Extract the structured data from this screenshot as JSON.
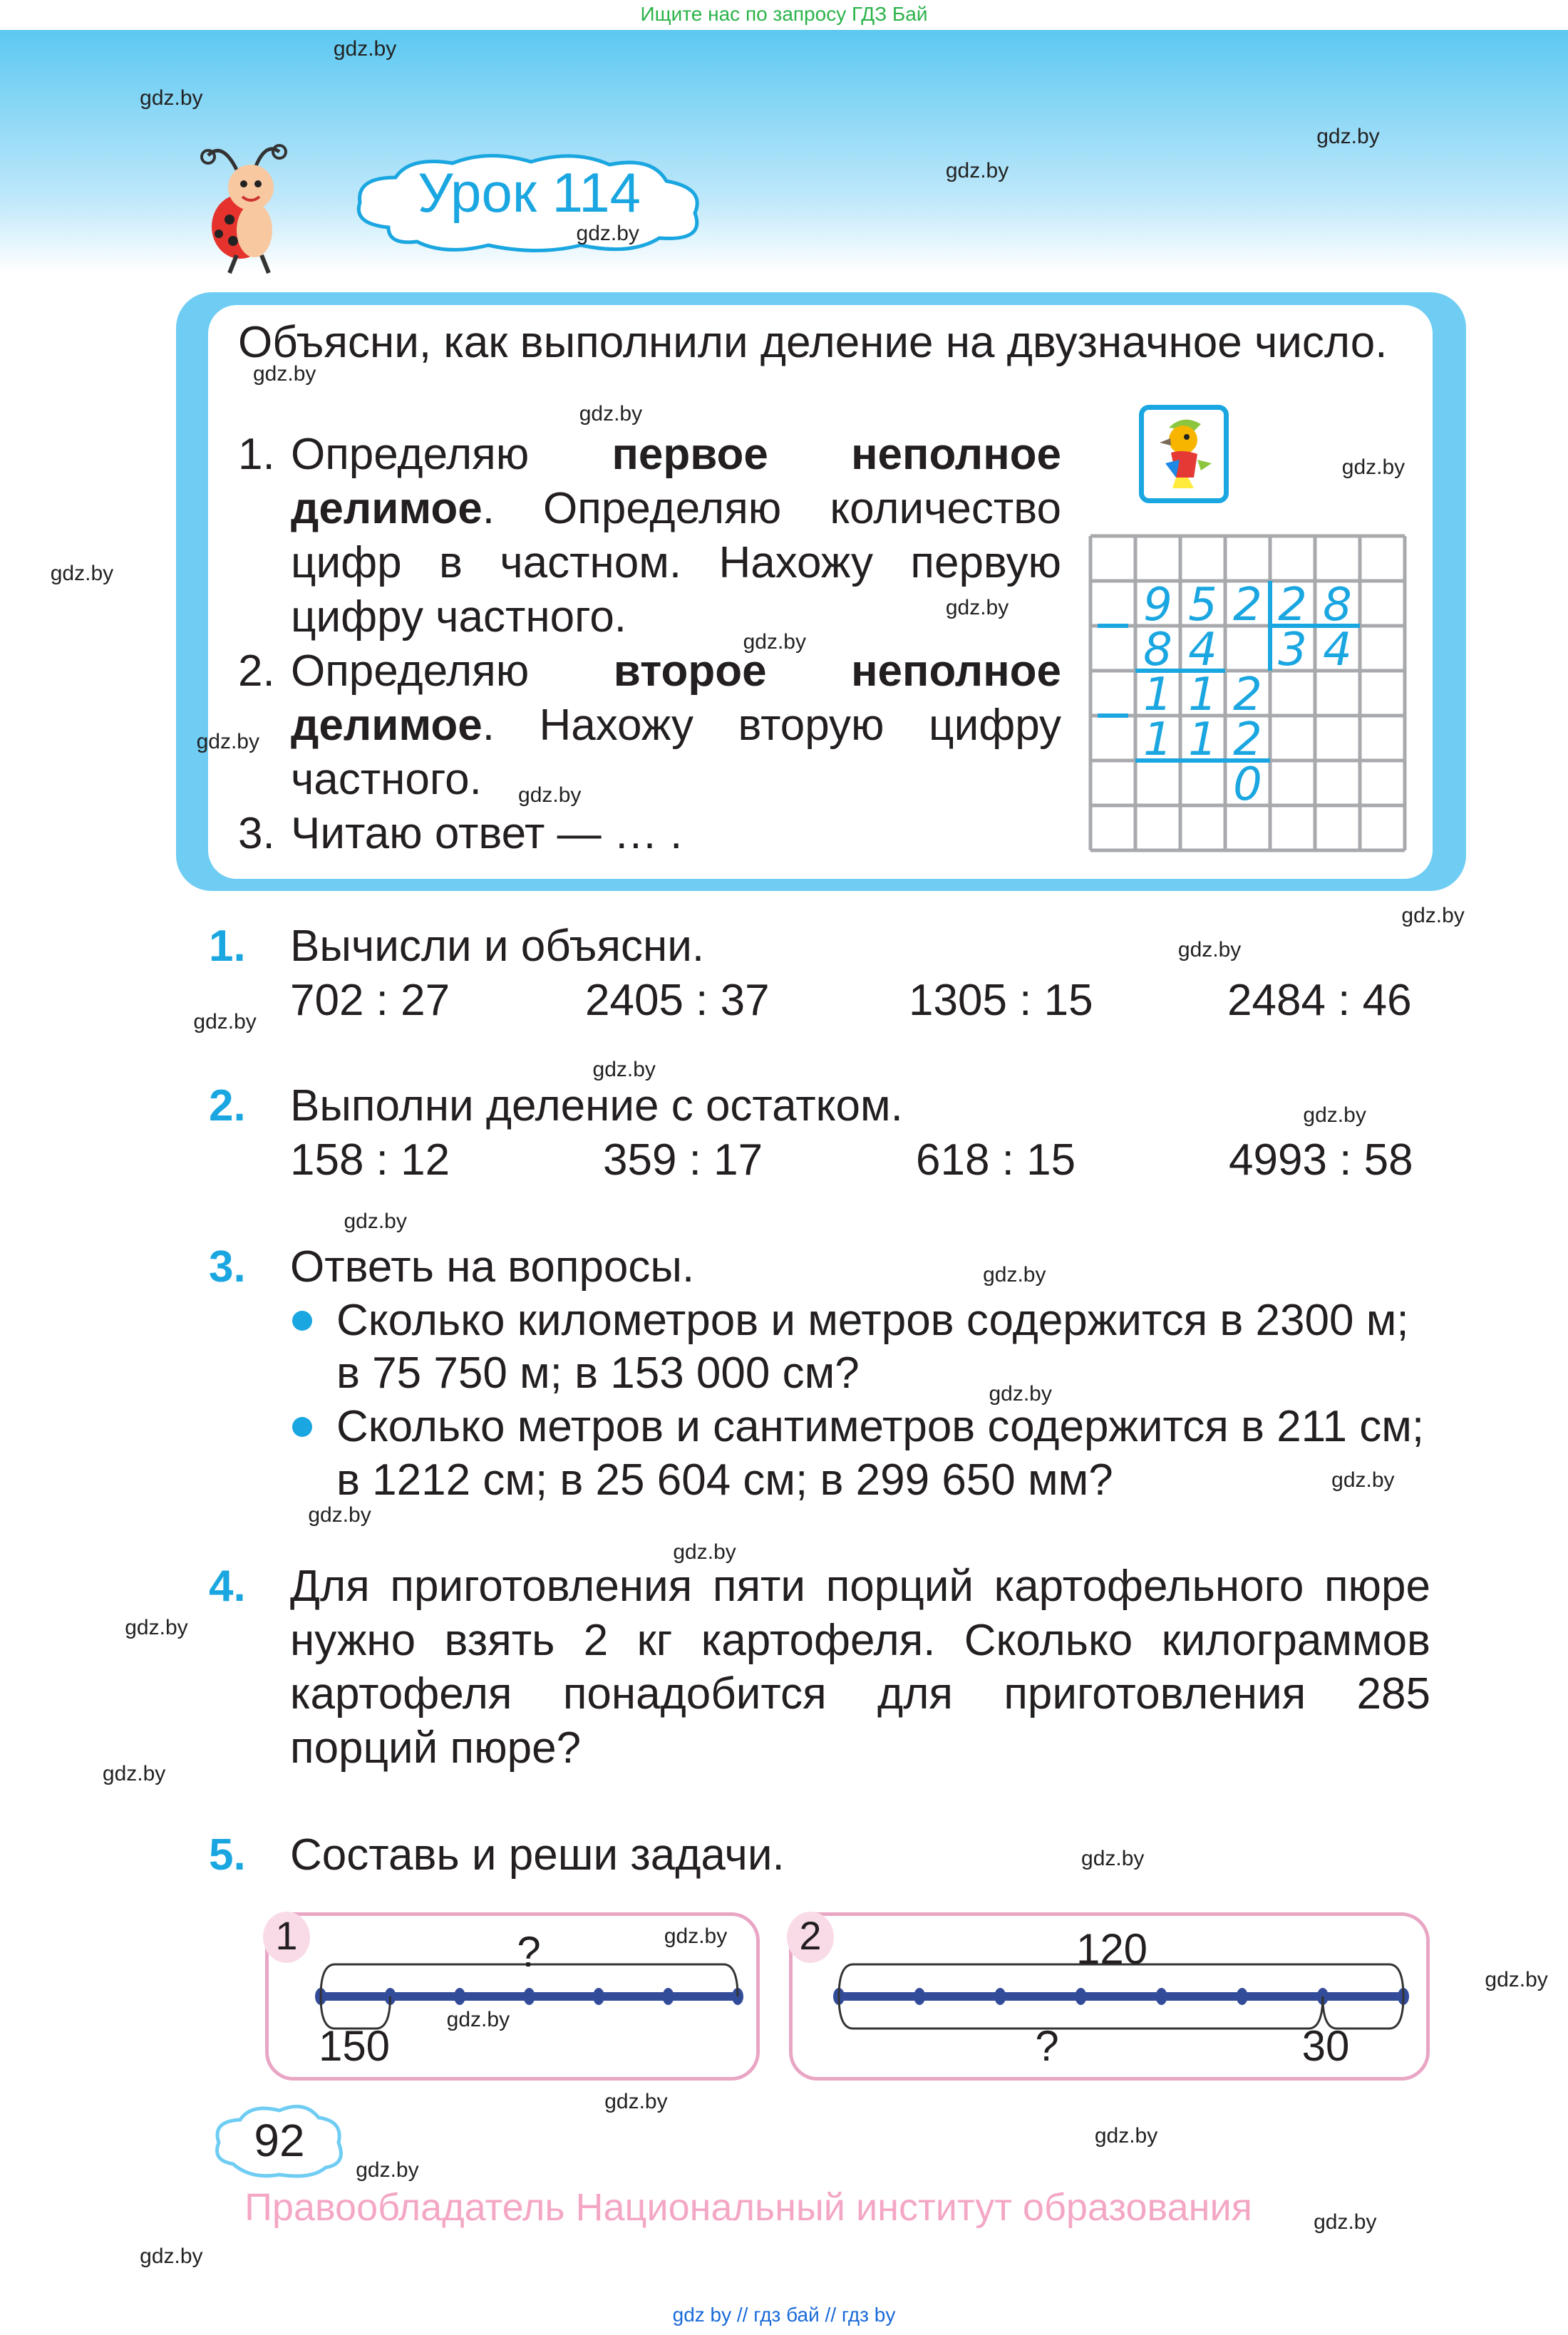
{
  "top_note": "Ищите нас по запросу ГДЗ Бай",
  "watermark": "gdz.by",
  "lesson_title": "Урок 114",
  "intro": {
    "heading": "Объясни, как выполнили деление на двузначное число.",
    "steps": [
      {
        "num": "1.",
        "parts": [
          {
            "t": "Определяю "
          },
          {
            "t": "первое неполное делимое",
            "b": true
          },
          {
            "t": ". Определяю количество цифр в частном. Нахожу первую цифру частного."
          }
        ]
      },
      {
        "num": "2.",
        "parts": [
          {
            "t": "Определяю "
          },
          {
            "t": "второе неполное делимое",
            "b": true
          },
          {
            "t": ". Нахожу вторую цифру частного."
          }
        ]
      },
      {
        "num": "3.",
        "parts": [
          {
            "t": "Читаю ответ — … ."
          }
        ]
      }
    ],
    "division": {
      "dividend": "952",
      "divisor": "28",
      "quotient": "34",
      "sub1": "84",
      "rem1": "112",
      "sub2": "112",
      "rem2": "0"
    }
  },
  "exercises": [
    {
      "num": "1.",
      "title": "Вычисли и объясни.",
      "items": [
        "702 : 27",
        "2405 : 37",
        "1305 : 15",
        "2484 : 46"
      ]
    },
    {
      "num": "2.",
      "title": "Выполни деление с остатком.",
      "items": [
        "158 : 12",
        "359 : 17",
        "618 : 15",
        "4993 : 58"
      ]
    },
    {
      "num": "3.",
      "title": "Ответь на вопросы.",
      "bullets": [
        [
          "Сколько километров и метров содержится в 2300 м;",
          "в 75 750 м; в 153 000 см?"
        ],
        [
          "Сколько метров и сантиметров содержится в 211 см;",
          "в 1212 см; в 25 604 см; в 299 650 мм?"
        ]
      ]
    },
    {
      "num": "4.",
      "text": "Для приготовления пяти порций картофельного пюре нужно взять 2 кг картофеля. Сколько килограммов картофеля понадобится для приготовления 285 порций пюре?"
    },
    {
      "num": "5.",
      "title": "Составь и реши задачи."
    }
  ],
  "diagrams": [
    {
      "num": "1",
      "top": "?",
      "bottom": "150",
      "parts": 6
    },
    {
      "num": "2",
      "top": "120",
      "bottom_left": "?",
      "bottom_right": "30",
      "parts": 7
    }
  ],
  "page_number": "92",
  "copyright": "Правообладатель Национальный институт образования",
  "footer": "gdz by  //  гдз бай  //  гдз by",
  "colors": {
    "accent": "#1aa6e0",
    "box": "#6fcdf3",
    "pink": "#e9a6c4",
    "line": "#334c9a"
  }
}
